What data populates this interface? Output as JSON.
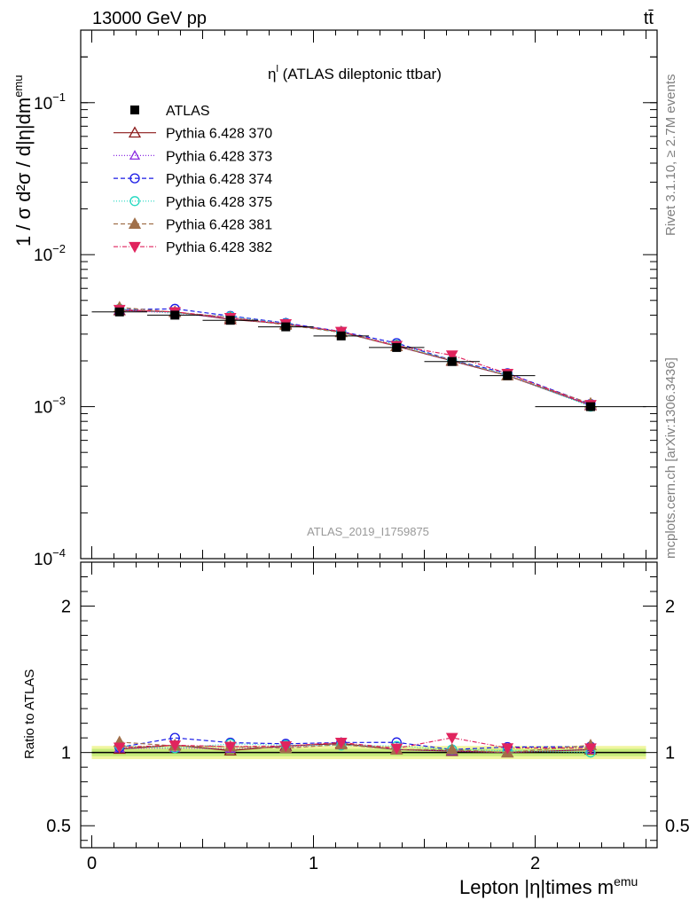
{
  "header": {
    "energy_label": "13000 GeV pp",
    "process_label": "tt̄",
    "plot_title_main": "η",
    "plot_title_sup": "l",
    "plot_title_rest": " (ATLAS dileptonic ttbar)",
    "analysis_label": "ATLAS_2019_I1759875",
    "rivet_label": "Rivet 3.1.10, ≥ 2.7M events",
    "mcplots_label": "mcplots.cern.ch [arXiv:1306.3436]"
  },
  "axes": {
    "ylabel_main": "1 / σ  d²σ / d|η|dm",
    "ylabel_main_sup": "emu",
    "ylabel_ratio": "Ratio to ATLAS",
    "xlabel": "Lepton |η|times m",
    "xlabel_sup": "emu"
  },
  "chart_data": {
    "type": "line",
    "x": [
      0.125,
      0.375,
      0.625,
      0.875,
      1.125,
      1.375,
      1.625,
      1.875,
      2.25
    ],
    "bin_edges": [
      0.0,
      0.25,
      0.5,
      0.75,
      1.0,
      1.25,
      1.5,
      1.75,
      2.0,
      2.5
    ],
    "xlim": [
      -0.05,
      2.55
    ],
    "ylim": [
      0.0001,
      0.3
    ],
    "yscale": "log",
    "ratio_ylim": [
      0.35,
      2.3
    ],
    "x_ticks": [
      "0",
      "1",
      "2"
    ],
    "y_ticks": [
      {
        "base": "10",
        "exp": "−1",
        "value": 0.1
      },
      {
        "base": "10",
        "exp": "−2",
        "value": 0.01
      },
      {
        "base": "10",
        "exp": "−3",
        "value": 0.001
      },
      {
        "base": "10",
        "exp": "−4",
        "value": 0.0001
      }
    ],
    "ratio_ticks": [
      "2",
      "1",
      "0.5"
    ],
    "legend_position": "top-left",
    "data": {
      "name": "ATLAS",
      "values": [
        0.0042,
        0.004,
        0.0037,
        0.00335,
        0.00292,
        0.00245,
        0.00198,
        0.0016,
        0.001
      ]
    },
    "series": [
      {
        "name": "Pythia 6.428 370",
        "color": "#8b1a1a",
        "marker": "triangle-open",
        "dash": "",
        "values": [
          0.0043,
          0.0042,
          0.00375,
          0.0035,
          0.0031,
          0.0025,
          0.002,
          0.0016,
          0.00102
        ]
      },
      {
        "name": "Pythia 6.428 373",
        "color": "#8a2be2",
        "marker": "triangle-open-small",
        "dash": "1,2",
        "values": [
          0.00432,
          0.00412,
          0.0038,
          0.00348,
          0.00308,
          0.0025,
          0.002,
          0.0016,
          0.00102
        ]
      },
      {
        "name": "Pythia 6.428 374",
        "color": "#1a1ae6",
        "marker": "circle-open",
        "dash": "5,3",
        "values": [
          0.00435,
          0.0044,
          0.00395,
          0.00355,
          0.00312,
          0.00262,
          0.00202,
          0.00166,
          0.00104
        ]
      },
      {
        "name": "Pythia 6.428 375",
        "color": "#20d8c0",
        "marker": "circle-open",
        "dash": "1,2",
        "values": [
          0.0044,
          0.00412,
          0.00392,
          0.00352,
          0.00306,
          0.00256,
          0.00202,
          0.00162,
          0.001
        ]
      },
      {
        "name": "Pythia 6.428 381",
        "color": "#a0704a",
        "marker": "triangle-filled",
        "dash": "5,3",
        "values": [
          0.0045,
          0.00418,
          0.00385,
          0.00345,
          0.00308,
          0.0025,
          0.00202,
          0.0016,
          0.00105
        ]
      },
      {
        "name": "Pythia 6.428 382",
        "color": "#e0245e",
        "marker": "triangle-down-filled",
        "dash": "5,2,1,2",
        "values": [
          0.00435,
          0.0042,
          0.00385,
          0.0035,
          0.00312,
          0.00252,
          0.00218,
          0.00165,
          0.00103
        ]
      }
    ]
  }
}
